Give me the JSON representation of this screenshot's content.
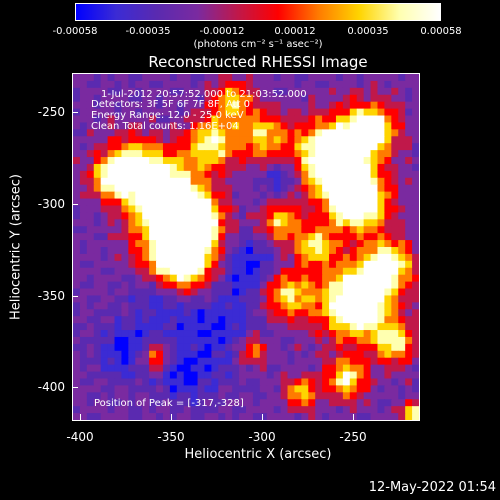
{
  "colorbar": {
    "tick_labels": [
      "-0.00058",
      "-0.00035",
      "-0.00012",
      "0.00012",
      "0.00035",
      "0.00058"
    ],
    "units": "(photons cm⁻² s⁻¹ asec⁻²)",
    "colormap": [
      "#0000ff",
      "#3b2bd4",
      "#5a2ab0",
      "#7a2aa0",
      "#c0184a",
      "#ff0000",
      "#ff7b00",
      "#ffd400",
      "#ffffb0",
      "#ffffff"
    ]
  },
  "title": "Reconstructed RHESSI Image",
  "annotations": {
    "line1": "1-Jul-2012 20:57:52.000 to 21:03:52.000",
    "line2": "Detectors: 3F 5F 6F 7F 8F, Att 0",
    "line3": "Energy Range: 12.0 - 25.0 keV",
    "line4": "Clean     Total counts: 1.16E+04",
    "peak": "Position of Peak = [-317,-328]"
  },
  "axes": {
    "xlabel": "Heliocentric X (arcsec)",
    "ylabel": "Heliocentric Y (arcsec)",
    "x_ticks": [
      "-400",
      "-350",
      "-300",
      "-250"
    ],
    "y_ticks": [
      "-250",
      "-300",
      "-350",
      "-400"
    ]
  },
  "footer": "12-May-2022 01:54"
}
